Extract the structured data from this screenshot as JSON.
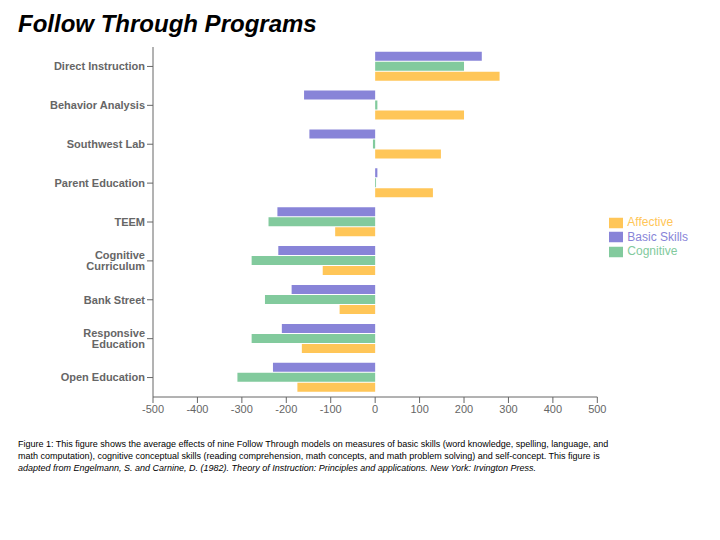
{
  "chart_data": {
    "type": "bar",
    "title": "Follow Through Programs",
    "orientation": "horizontal",
    "categories": [
      "Direct Instruction",
      "Behavior Analysis",
      "Southwest Lab",
      "Parent Education",
      "TEEM",
      "Cognitive Curriculum",
      "Bank Street",
      "Responsive Education",
      "Open Education"
    ],
    "series": [
      {
        "name": "Basic Skills",
        "color": "#8884d8",
        "values": [
          240,
          -160,
          -148,
          5,
          -220,
          -218,
          -188,
          -210,
          -230
        ]
      },
      {
        "name": "Cognitive",
        "color": "#82ca9d",
        "values": [
          200,
          5,
          -5,
          2,
          -240,
          -278,
          -248,
          -278,
          -310
        ]
      },
      {
        "name": "Affective",
        "color": "#ffc658",
        "values": [
          280,
          200,
          148,
          130,
          -90,
          -118,
          -80,
          -165,
          -175
        ]
      }
    ],
    "xlim": [
      -500,
      500
    ],
    "xticks": [
      -500,
      -400,
      -300,
      -200,
      -100,
      0,
      100,
      200,
      300,
      400,
      500
    ],
    "grid": false,
    "legend": "right",
    "annotations": [
      "Figure 1: This figure shows the average effects of nine Follow Through models on measures of basic skills (word knowledge, spelling, language, and",
      "math computation), cognitive conceptual skills (reading comprehension, math concepts, and math problem solving) and self-concept. This figure is",
      "adapted from Engelmann, S. and Carnine, D. (1982). Theory of Instruction: Principles and applications. New York: Irvington Press."
    ]
  }
}
